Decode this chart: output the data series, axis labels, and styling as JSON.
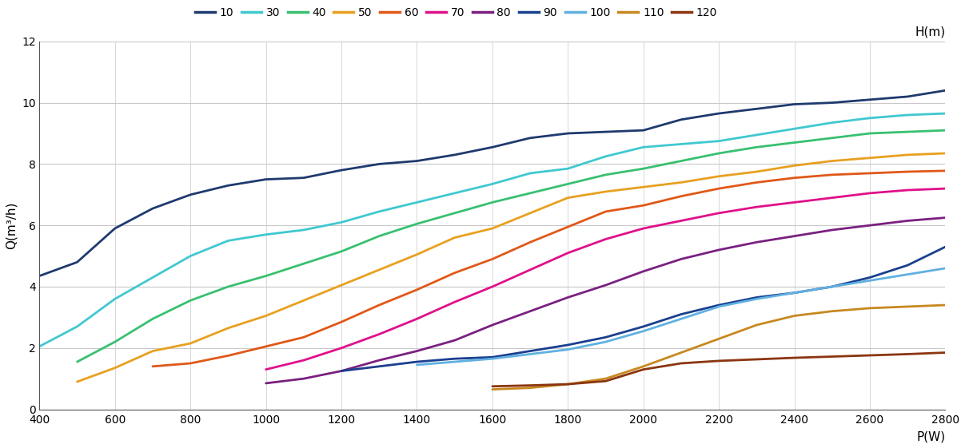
{
  "series": [
    {
      "label": "10",
      "color": "#1e3a6e",
      "x": [
        400,
        500,
        600,
        700,
        800,
        900,
        1000,
        1100,
        1200,
        1300,
        1400,
        1500,
        1600,
        1700,
        1800,
        1900,
        2000,
        2100,
        2200,
        2300,
        2400,
        2500,
        2600,
        2700,
        2800
      ],
      "y": [
        4.35,
        4.8,
        5.9,
        6.55,
        7.0,
        7.3,
        7.5,
        7.55,
        7.8,
        8.0,
        8.1,
        8.3,
        8.55,
        8.85,
        9.0,
        9.05,
        9.1,
        9.45,
        9.65,
        9.8,
        9.95,
        10.0,
        10.1,
        10.2,
        10.4
      ]
    },
    {
      "label": "30",
      "color": "#40c8d0",
      "x": [
        400,
        500,
        600,
        700,
        800,
        900,
        1000,
        1100,
        1200,
        1300,
        1400,
        1500,
        1600,
        1700,
        1800,
        1900,
        2000,
        2100,
        2200,
        2300,
        2400,
        2500,
        2600,
        2700,
        2800
      ],
      "y": [
        2.05,
        2.7,
        3.6,
        4.3,
        5.0,
        5.5,
        5.7,
        5.85,
        6.1,
        6.45,
        6.75,
        7.05,
        7.35,
        7.7,
        7.85,
        8.25,
        8.55,
        8.65,
        8.75,
        8.95,
        9.15,
        9.35,
        9.5,
        9.6,
        9.65
      ]
    },
    {
      "label": "40",
      "color": "#38c070",
      "x": [
        500,
        600,
        700,
        800,
        900,
        1000,
        1100,
        1200,
        1300,
        1400,
        1500,
        1600,
        1700,
        1800,
        1900,
        2000,
        2100,
        2200,
        2300,
        2400,
        2500,
        2600,
        2700,
        2800
      ],
      "y": [
        1.55,
        2.2,
        2.95,
        3.55,
        4.0,
        4.35,
        4.75,
        5.15,
        5.65,
        6.05,
        6.4,
        6.75,
        7.05,
        7.35,
        7.65,
        7.85,
        8.1,
        8.35,
        8.55,
        8.7,
        8.85,
        9.0,
        9.05,
        9.1
      ]
    },
    {
      "label": "50",
      "color": "#e8a020",
      "x": [
        500,
        600,
        700,
        800,
        900,
        1000,
        1100,
        1200,
        1300,
        1400,
        1500,
        1600,
        1700,
        1800,
        1900,
        2000,
        2100,
        2200,
        2300,
        2400,
        2500,
        2600,
        2700,
        2800
      ],
      "y": [
        0.9,
        1.35,
        1.9,
        2.15,
        2.65,
        3.05,
        3.55,
        4.05,
        4.55,
        5.05,
        5.6,
        5.9,
        6.4,
        6.9,
        7.1,
        7.25,
        7.4,
        7.6,
        7.75,
        7.95,
        8.1,
        8.2,
        8.3,
        8.35
      ]
    },
    {
      "label": "60",
      "color": "#e05818",
      "x": [
        700,
        800,
        900,
        1000,
        1100,
        1200,
        1300,
        1400,
        1500,
        1600,
        1700,
        1800,
        1900,
        2000,
        2100,
        2200,
        2300,
        2400,
        2500,
        2600,
        2700,
        2800
      ],
      "y": [
        1.4,
        1.5,
        1.75,
        2.05,
        2.35,
        2.85,
        3.4,
        3.9,
        4.45,
        4.9,
        5.45,
        5.95,
        6.45,
        6.65,
        6.95,
        7.2,
        7.4,
        7.55,
        7.65,
        7.7,
        7.75,
        7.78
      ]
    },
    {
      "label": "70",
      "color": "#e0108a",
      "x": [
        1000,
        1100,
        1200,
        1300,
        1400,
        1500,
        1600,
        1700,
        1800,
        1900,
        2000,
        2100,
        2200,
        2300,
        2400,
        2500,
        2600,
        2700,
        2800
      ],
      "y": [
        1.3,
        1.6,
        2.0,
        2.45,
        2.95,
        3.5,
        4.0,
        4.55,
        5.1,
        5.55,
        5.9,
        6.15,
        6.4,
        6.6,
        6.75,
        6.9,
        7.05,
        7.15,
        7.2
      ]
    },
    {
      "label": "80",
      "color": "#7a2080",
      "x": [
        1000,
        1100,
        1200,
        1300,
        1400,
        1500,
        1600,
        1700,
        1800,
        1900,
        2000,
        2100,
        2200,
        2300,
        2400,
        2500,
        2600,
        2700,
        2800
      ],
      "y": [
        0.85,
        1.0,
        1.25,
        1.6,
        1.9,
        2.25,
        2.75,
        3.2,
        3.65,
        4.05,
        4.5,
        4.9,
        5.2,
        5.45,
        5.65,
        5.85,
        6.0,
        6.15,
        6.25
      ]
    },
    {
      "label": "90",
      "color": "#1a3f8f",
      "x": [
        1200,
        1300,
        1400,
        1500,
        1600,
        1700,
        1800,
        1900,
        2000,
        2100,
        2200,
        2300,
        2400,
        2500,
        2600,
        2700,
        2800
      ],
      "y": [
        1.25,
        1.4,
        1.55,
        1.65,
        1.7,
        1.9,
        2.1,
        2.35,
        2.7,
        3.1,
        3.4,
        3.65,
        3.8,
        4.0,
        4.3,
        4.7,
        5.3
      ]
    },
    {
      "label": "100",
      "color": "#60b0e0",
      "x": [
        1400,
        1500,
        1600,
        1700,
        1800,
        1900,
        2000,
        2100,
        2200,
        2300,
        2400,
        2500,
        2600,
        2700,
        2800
      ],
      "y": [
        1.45,
        1.55,
        1.65,
        1.8,
        1.95,
        2.2,
        2.55,
        2.95,
        3.35,
        3.6,
        3.8,
        4.0,
        4.2,
        4.4,
        4.6
      ]
    },
    {
      "label": "110",
      "color": "#c88820",
      "x": [
        1600,
        1700,
        1800,
        1900,
        2000,
        2100,
        2200,
        2300,
        2400,
        2500,
        2600,
        2700,
        2800
      ],
      "y": [
        0.65,
        0.7,
        0.82,
        1.0,
        1.4,
        1.85,
        2.3,
        2.75,
        3.05,
        3.2,
        3.3,
        3.35,
        3.4
      ]
    },
    {
      "label": "120",
      "color": "#8b3510",
      "x": [
        1600,
        1700,
        1800,
        1900,
        2000,
        2100,
        2200,
        2300,
        2400,
        2500,
        2600,
        2700,
        2800
      ],
      "y": [
        0.75,
        0.78,
        0.82,
        0.92,
        1.3,
        1.5,
        1.58,
        1.63,
        1.68,
        1.72,
        1.76,
        1.8,
        1.85
      ]
    }
  ],
  "xlabel": "P(W)",
  "ylabel": "Q(m³/h)",
  "ylabel_right": "H(m)",
  "xlim": [
    400,
    2800
  ],
  "ylim": [
    0,
    12
  ],
  "xticks": [
    400,
    600,
    800,
    1000,
    1200,
    1400,
    1600,
    1800,
    2000,
    2200,
    2400,
    2600,
    2800
  ],
  "yticks": [
    0,
    2,
    4,
    6,
    8,
    10,
    12
  ],
  "background_color": "#ffffff",
  "grid_color": "#c8c8c8",
  "linewidth": 2.0
}
